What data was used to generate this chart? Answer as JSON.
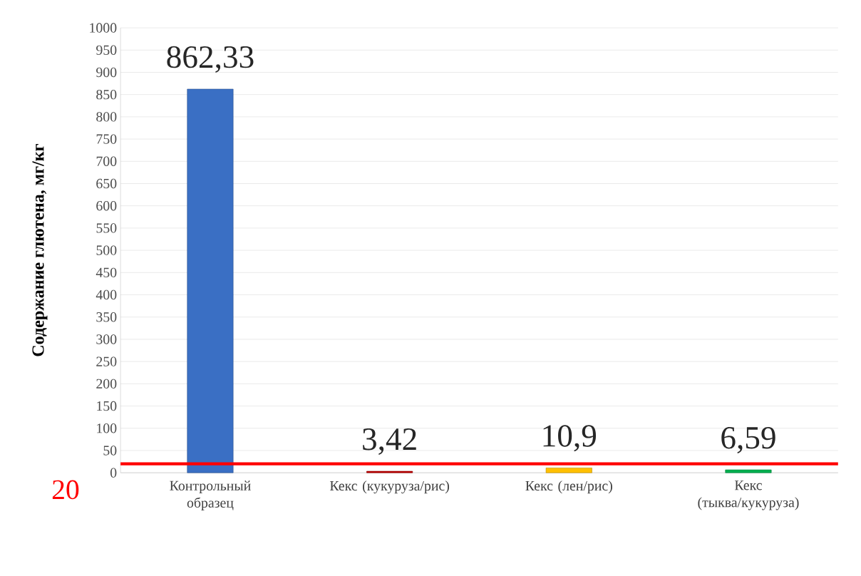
{
  "chart_data": {
    "type": "bar",
    "ylabel": "Содержание глютена, мг/кг",
    "categories": [
      "Контрольный образец",
      "Кекс (кукуруза/рис)",
      "Кекс (лен/рис)",
      "Кекс (тыква/кукуруза)"
    ],
    "values": [
      862.33,
      3.42,
      10.9,
      6.59
    ],
    "colors": [
      "#3a6fc4",
      "#c00000",
      "#ffc000",
      "#00b050"
    ],
    "value_labels": [
      "862,33",
      "3,42",
      "10,9",
      "6,59"
    ],
    "ylim": [
      0,
      1000
    ],
    "yticks": [
      0,
      50,
      100,
      150,
      200,
      250,
      300,
      350,
      400,
      450,
      500,
      550,
      600,
      650,
      700,
      750,
      800,
      850,
      900,
      950,
      1000
    ],
    "grid": "y",
    "ref_lines": [
      {
        "axis": "y",
        "value": 20,
        "label": "20",
        "color": "#ff0000"
      }
    ]
  }
}
